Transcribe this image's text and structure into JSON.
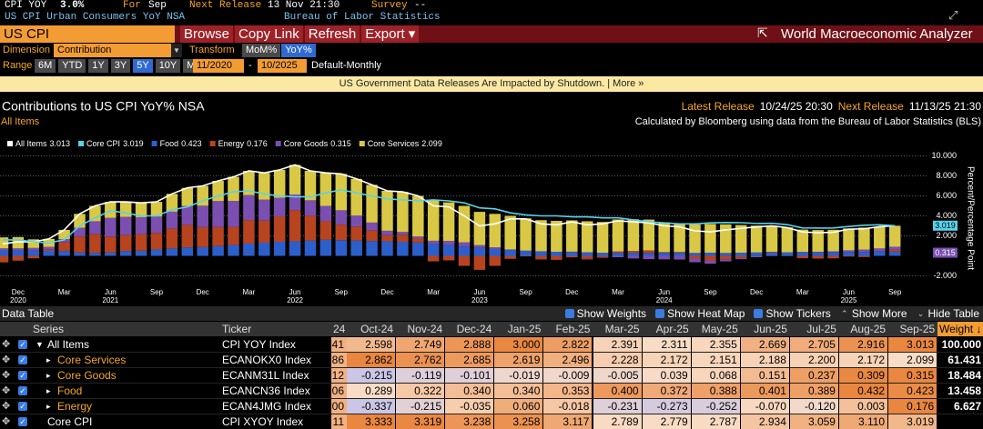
{
  "header": {
    "ticker": "CPI YOY",
    "value": "3.0%",
    "for_label": "For",
    "for_value": "Sep",
    "next_label": "Next Release",
    "next_value": "13 Nov 21:30",
    "survey_label": "Survey",
    "survey_value": "--",
    "description": "US CPI Urban Consumers YoY NSA",
    "source": "Bureau of Labor Statistics"
  },
  "toolbar": {
    "search": "US CPI",
    "buttons": [
      "Browse",
      "Copy Link",
      "Refresh",
      "Export ▾"
    ],
    "app": "World Macroeconomic Analyzer"
  },
  "controls": {
    "dimension_label": "Dimension",
    "dimension": "Contribution",
    "transform_label": "Transform",
    "transforms": [
      "MoM%",
      "YoY%"
    ],
    "range_label": "Range",
    "ranges": [
      "6M",
      "YTD",
      "1Y",
      "3Y",
      "5Y",
      "10Y",
      "MAX"
    ],
    "start": "11/2020",
    "separator": "-",
    "end": "10/2025",
    "frequency": "Default-Monthly"
  },
  "banner": "US Government Data Releases Are Impacted by Shutdown. | More »",
  "chart_data": {
    "type": "bar",
    "title": "Contributions to US CPI YoY% NSA",
    "subtitle": "All Items",
    "latest_release_label": "Latest Release",
    "latest_release": "10/24/25 20:30",
    "next_release_label": "Next Release",
    "next_release": "11/13/25 21:30",
    "note": "Calculated by Bloomberg using data from the Bureau of Labor Statistics (BLS)",
    "y_axis_label": "Percent/Percentage Point",
    "categories": [
      null,
      "Dec",
      null,
      null,
      "Mar",
      null,
      null,
      "Jun",
      null,
      null,
      "Sep",
      null,
      null,
      "Dec",
      null,
      null,
      "Mar",
      null,
      null,
      "Jun",
      null,
      null,
      "Sep",
      null,
      null,
      "Dec",
      null,
      null,
      "Mar",
      null,
      null,
      "Jun",
      null,
      null,
      "Sep",
      null,
      null,
      "Dec",
      null,
      null,
      "Mar",
      null,
      null,
      "Jun",
      null,
      null,
      "Sep",
      null,
      null,
      "Dec",
      null,
      null,
      "Mar",
      null,
      null,
      "Jun",
      null,
      null,
      "Sep"
    ],
    "years": [
      null,
      "2020",
      null,
      null,
      null,
      null,
      null,
      "2021",
      null,
      null,
      null,
      null,
      null,
      null,
      null,
      null,
      null,
      null,
      null,
      "2022",
      null,
      null,
      null,
      null,
      null,
      null,
      null,
      null,
      null,
      null,
      null,
      "2023",
      null,
      null,
      null,
      null,
      null,
      null,
      null,
      null,
      null,
      null,
      null,
      "2024",
      null,
      null,
      null,
      null,
      null,
      null,
      null,
      null,
      null,
      null,
      null,
      "2025",
      null,
      null,
      null
    ],
    "ylim": [
      -3,
      10.5
    ],
    "yticks": [
      {
        "value": 10,
        "label": "10.000"
      },
      {
        "value": 8,
        "label": "8.000"
      },
      {
        "value": 6,
        "label": "6.000"
      },
      {
        "value": 4,
        "label": "4.000"
      },
      {
        "value": 2,
        "label": "2.000"
      },
      {
        "value": -2,
        "label": "-2.000"
      }
    ],
    "grid": true,
    "series": [
      {
        "name": "All Items",
        "type": "line",
        "color": "#ffffff",
        "values": [
          1.2,
          1.4,
          1.4,
          1.7,
          2.6,
          4.2,
          5.0,
          5.4,
          5.4,
          5.3,
          5.4,
          6.2,
          6.8,
          7.0,
          7.5,
          7.9,
          8.5,
          8.3,
          8.6,
          9.1,
          8.5,
          8.3,
          8.2,
          7.7,
          7.1,
          6.5,
          6.4,
          6.0,
          5.0,
          4.9,
          4.0,
          3.0,
          3.2,
          3.7,
          3.7,
          3.2,
          3.1,
          3.4,
          3.1,
          3.2,
          3.5,
          3.4,
          3.3,
          3.0,
          2.9,
          2.5,
          2.4,
          2.598,
          2.749,
          2.888,
          3.0,
          2.822,
          2.391,
          2.311,
          2.355,
          2.669,
          2.705,
          2.916,
          3.013
        ]
      },
      {
        "name": "Core CPI",
        "type": "line",
        "color": "#56d3ec",
        "end_label": true,
        "values": [
          1.6,
          1.6,
          1.4,
          1.3,
          1.6,
          3.0,
          3.8,
          4.5,
          4.3,
          4.0,
          4.0,
          4.6,
          4.9,
          5.5,
          6.0,
          6.4,
          6.5,
          6.2,
          6.0,
          5.9,
          5.9,
          6.3,
          6.6,
          6.3,
          6.0,
          5.7,
          5.6,
          5.5,
          5.6,
          5.5,
          5.3,
          4.8,
          4.7,
          4.3,
          4.1,
          4.0,
          4.0,
          3.9,
          3.9,
          3.8,
          3.8,
          3.6,
          3.4,
          3.3,
          3.2,
          3.2,
          3.3,
          3.333,
          3.319,
          3.238,
          3.258,
          3.117,
          2.789,
          2.779,
          2.787,
          2.934,
          3.059,
          3.11,
          3.019
        ]
      },
      {
        "name": "Food",
        "type": "bar",
        "color": "#2c5fcc",
        "values": [
          0.55,
          0.55,
          0.53,
          0.5,
          0.49,
          0.34,
          0.31,
          0.34,
          0.48,
          0.52,
          0.64,
          0.74,
          0.85,
          0.88,
          0.98,
          1.1,
          1.23,
          1.32,
          1.41,
          1.46,
          1.53,
          1.6,
          1.57,
          1.53,
          1.48,
          1.46,
          1.41,
          1.33,
          1.19,
          1.08,
          0.94,
          0.8,
          0.69,
          0.6,
          0.52,
          0.46,
          0.41,
          0.38,
          0.36,
          0.31,
          0.31,
          0.31,
          0.29,
          0.31,
          0.31,
          0.29,
          0.32,
          0.289,
          0.322,
          0.34,
          0.34,
          0.353,
          0.4,
          0.372,
          0.388,
          0.401,
          0.389,
          0.432,
          0.423
        ]
      },
      {
        "name": "Energy",
        "type": "bar",
        "color": "#b8431f",
        "values": [
          -0.65,
          -0.48,
          -0.25,
          0.15,
          0.85,
          1.6,
          1.85,
          1.6,
          1.6,
          1.65,
          1.65,
          2.0,
          2.25,
          2.0,
          1.9,
          1.8,
          2.35,
          2.2,
          2.55,
          3.1,
          2.5,
          1.85,
          1.55,
          1.4,
          1.05,
          0.6,
          0.7,
          0.4,
          -0.55,
          -0.45,
          -1.0,
          -1.4,
          -1.0,
          -0.3,
          -0.05,
          -0.35,
          -0.4,
          -0.15,
          -0.3,
          -0.13,
          0.14,
          0.18,
          0.26,
          0.07,
          0.08,
          -0.27,
          -0.46,
          -0.337,
          -0.215,
          -0.035,
          0.06,
          -0.018,
          -0.231,
          -0.273,
          -0.252,
          -0.07,
          -0.12,
          0.003,
          0.176
        ]
      },
      {
        "name": "Core Goods",
        "type": "bar",
        "color": "#7a4fb0",
        "end_label": true,
        "values": [
          0.2,
          0.2,
          0.26,
          0.26,
          0.34,
          0.88,
          1.3,
          1.86,
          1.82,
          1.7,
          1.64,
          1.68,
          1.88,
          2.14,
          2.6,
          2.6,
          2.5,
          2.1,
          1.85,
          1.57,
          1.53,
          1.55,
          1.44,
          1.1,
          0.8,
          0.45,
          0.28,
          0.21,
          0.32,
          0.42,
          0.42,
          0.27,
          0.17,
          0.04,
          0.0,
          -0.02,
          0.0,
          0.04,
          -0.06,
          -0.06,
          -0.14,
          -0.26,
          -0.33,
          -0.35,
          -0.37,
          -0.37,
          -0.33,
          -0.215,
          -0.119,
          -0.101,
          -0.019,
          -0.009,
          -0.005,
          0.039,
          0.068,
          0.151,
          0.237,
          0.309,
          0.315
        ]
      },
      {
        "name": "Core Services",
        "type": "bar",
        "color": "#d9c845",
        "values": [
          1.1,
          1.13,
          0.86,
          0.79,
          0.92,
          1.38,
          1.54,
          1.6,
          1.5,
          1.43,
          1.47,
          1.78,
          1.82,
          1.98,
          2.02,
          2.4,
          2.42,
          2.68,
          2.79,
          2.97,
          2.94,
          3.3,
          3.64,
          3.67,
          3.77,
          3.99,
          4.01,
          4.06,
          4.04,
          3.85,
          3.64,
          3.33,
          3.34,
          3.36,
          3.23,
          3.11,
          3.09,
          3.13,
          3.1,
          3.08,
          3.19,
          3.17,
          3.08,
          2.97,
          2.88,
          2.85,
          2.87,
          2.862,
          2.762,
          2.685,
          2.619,
          2.496,
          2.228,
          2.172,
          2.151,
          2.188,
          2.2,
          2.172,
          2.099
        ]
      }
    ]
  },
  "table": {
    "title": "Data Table",
    "options": [
      "Show Weights",
      "Show Heat Map",
      "Show Tickers",
      "Show More",
      "Hide Table"
    ],
    "columns": [
      "Series",
      "Ticker",
      "24",
      "Oct-24",
      "Nov-24",
      "Dec-24",
      "Jan-25",
      "Feb-25",
      "Mar-25",
      "Apr-25",
      "May-25",
      "Jun-25",
      "Jul-25",
      "Aug-25",
      "Sep-25",
      "Weight ↓"
    ],
    "rows": [
      {
        "series": "All Items",
        "ticker": "CPI YOY Index",
        "cells": [
          "41",
          "2.598",
          "2.749",
          "2.888",
          "3.000",
          "2.822",
          "2.391",
          "2.311",
          "2.355",
          "2.669",
          "2.705",
          "2.916",
          "3.013"
        ],
        "weight": "100.000"
      },
      {
        "series": "Core Services",
        "ticker": "ECANOKX0 Index",
        "cells": [
          "86",
          "2.862",
          "2.762",
          "2.685",
          "2.619",
          "2.496",
          "2.228",
          "2.172",
          "2.151",
          "2.188",
          "2.200",
          "2.172",
          "2.099"
        ],
        "weight": "61.431"
      },
      {
        "series": "Core Goods",
        "ticker": "ECANM31L Index",
        "cells": [
          "12",
          "-0.215",
          "-0.119",
          "-0.101",
          "-0.019",
          "-0.009",
          "-0.005",
          "0.039",
          "0.068",
          "0.151",
          "0.237",
          "0.309",
          "0.315"
        ],
        "weight": "18.484"
      },
      {
        "series": "Food",
        "ticker": "ECANCN36 Index",
        "cells": [
          "06",
          "0.289",
          "0.322",
          "0.340",
          "0.340",
          "0.353",
          "0.400",
          "0.372",
          "0.388",
          "0.401",
          "0.389",
          "0.432",
          "0.423"
        ],
        "weight": "13.458"
      },
      {
        "series": "Energy",
        "ticker": "ECAN4JMG Index",
        "cells": [
          "00",
          "-0.337",
          "-0.215",
          "-0.035",
          "0.060",
          "-0.018",
          "-0.231",
          "-0.273",
          "-0.252",
          "-0.070",
          "-0.120",
          "0.003",
          "0.176"
        ],
        "weight": "6.627"
      },
      {
        "series": "Core CPI",
        "ticker": "CPI XYOY Index",
        "cells": [
          "11",
          "3.333",
          "3.319",
          "3.238",
          "3.258",
          "3.117",
          "2.789",
          "2.779",
          "2.787",
          "2.934",
          "3.059",
          "3.110",
          "3.019"
        ]
      }
    ]
  }
}
